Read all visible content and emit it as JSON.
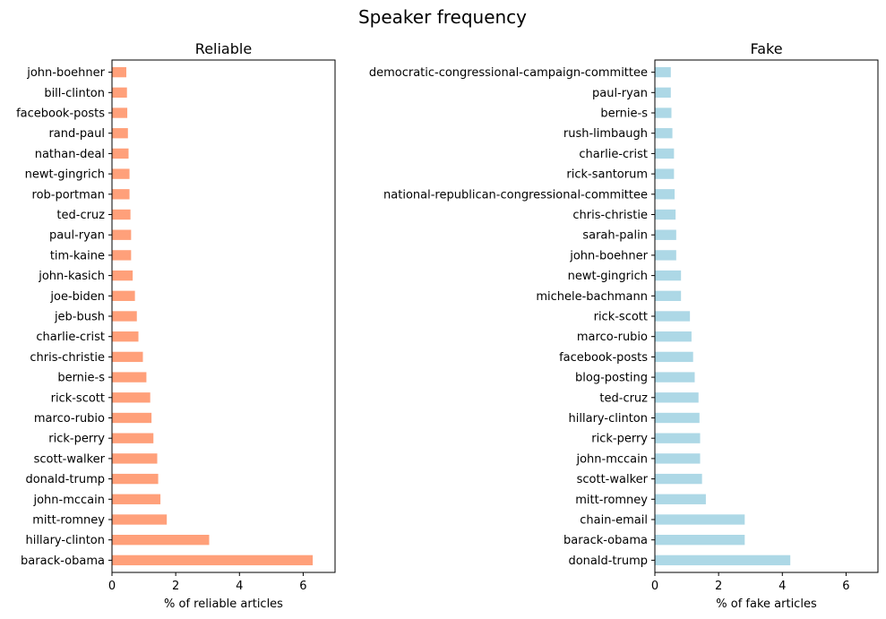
{
  "figure_title": "Speaker frequency",
  "chart_data": [
    {
      "type": "bar",
      "orientation": "horizontal",
      "title": "Reliable",
      "xlabel": "% of reliable articles",
      "ylabel": "",
      "xlim": [
        0,
        7
      ],
      "xticks": [
        0,
        2,
        4,
        6
      ],
      "grid": false,
      "color": "#ffa07a",
      "categories": [
        "barack-obama",
        "hillary-clinton",
        "mitt-romney",
        "john-mccain",
        "donald-trump",
        "scott-walker",
        "rick-perry",
        "marco-rubio",
        "rick-scott",
        "bernie-s",
        "chris-christie",
        "charlie-crist",
        "jeb-bush",
        "joe-biden",
        "john-kasich",
        "tim-kaine",
        "paul-ryan",
        "ted-cruz",
        "rob-portman",
        "newt-gingrich",
        "nathan-deal",
        "rand-paul",
        "facebook-posts",
        "bill-clinton",
        "john-boehner"
      ],
      "values": [
        6.3,
        3.05,
        1.72,
        1.52,
        1.45,
        1.42,
        1.3,
        1.24,
        1.2,
        1.08,
        0.97,
        0.83,
        0.78,
        0.72,
        0.65,
        0.6,
        0.6,
        0.58,
        0.55,
        0.55,
        0.52,
        0.5,
        0.48,
        0.47,
        0.45
      ]
    },
    {
      "type": "bar",
      "orientation": "horizontal",
      "title": "Fake",
      "xlabel": "% of fake articles",
      "ylabel": "",
      "xlim": [
        0,
        7
      ],
      "xticks": [
        0,
        2,
        4,
        6
      ],
      "grid": false,
      "color": "#add8e6",
      "categories": [
        "donald-trump",
        "barack-obama",
        "chain-email",
        "mitt-romney",
        "scott-walker",
        "john-mccain",
        "rick-perry",
        "hillary-clinton",
        "ted-cruz",
        "blog-posting",
        "facebook-posts",
        "marco-rubio",
        "rick-scott",
        "michele-bachmann",
        "newt-gingrich",
        "john-boehner",
        "sarah-palin",
        "chris-christie",
        "national-republican-congressional-committee",
        "rick-santorum",
        "charlie-crist",
        "rush-limbaugh",
        "bernie-s",
        "paul-ryan",
        "democratic-congressional-campaign-committee"
      ],
      "values": [
        4.25,
        2.82,
        2.82,
        1.6,
        1.48,
        1.42,
        1.42,
        1.4,
        1.37,
        1.25,
        1.2,
        1.15,
        1.1,
        0.82,
        0.82,
        0.67,
        0.67,
        0.65,
        0.62,
        0.6,
        0.6,
        0.55,
        0.52,
        0.5,
        0.5
      ]
    }
  ]
}
